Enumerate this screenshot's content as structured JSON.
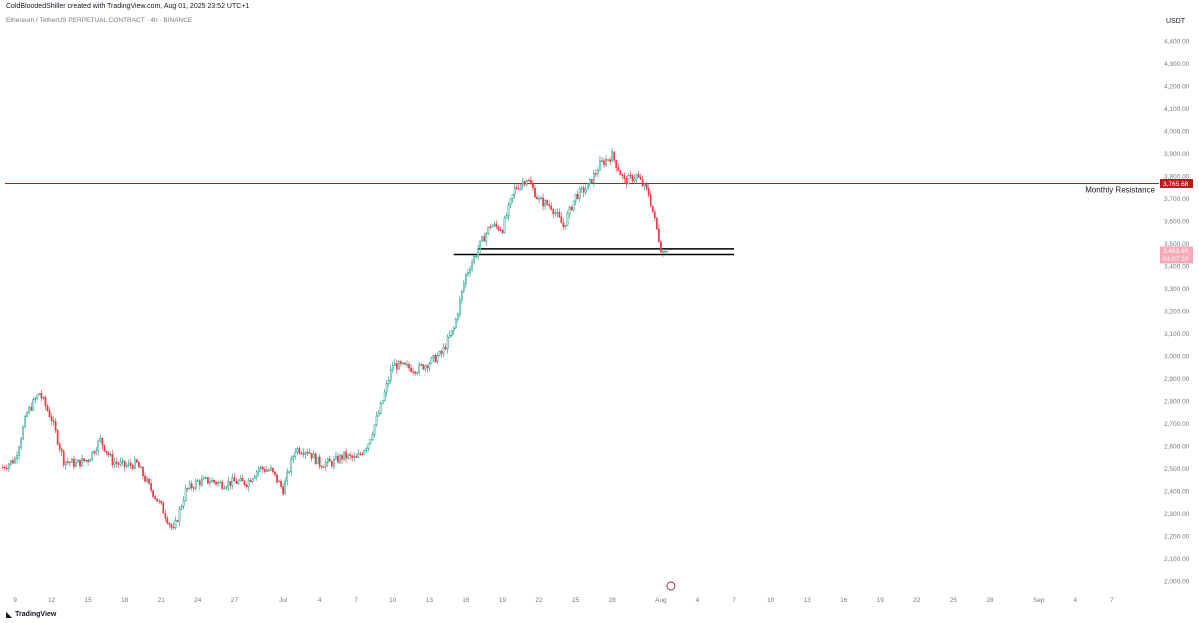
{
  "header": {
    "author_line": "ColdBloodedShiller created with TradingView.com, Aug 01, 2025 23:52 UTC+1",
    "symbol_line": "Ethereum / TetherUS PERPETUAL CONTRACT · 4h · BINANCE"
  },
  "footer": {
    "logo_text": "TradingView"
  },
  "colors": {
    "up": "#089981",
    "down": "#f23645",
    "candle_body": "#ffffff",
    "resistance": "#b71c1c",
    "support": "#000000",
    "last_price": "#f7a9b7"
  },
  "chart_data": {
    "type": "candlestick",
    "y_unit": "USDT",
    "ylim": [
      1950,
      4470
    ],
    "y_ticks": [
      2000,
      2100,
      2200,
      2300,
      2400,
      2500,
      2600,
      2700,
      2800,
      2900,
      3000,
      3100,
      3200,
      3300,
      3400,
      3500,
      3600,
      3700,
      3800,
      3900,
      4000,
      4100,
      4200,
      4300,
      4400
    ],
    "y_tick_labels": [
      "2,000.00",
      "2,100.00",
      "2,200.00",
      "2,300.00",
      "2,400.00",
      "2,500.00",
      "2,600.00",
      "2,700.00",
      "2,800.00",
      "2,900.00",
      "3,000.00",
      "3,100.00",
      "3,200.00",
      "3,300.00",
      "3,400.00",
      "3,500.00",
      "3,600.00",
      "3,700.00",
      "3,800.00",
      "3,900.00",
      "4,000.00",
      "4,100.00",
      "4,200.00",
      "4,300.00",
      "4,400.00"
    ],
    "x_axis": {
      "start": "2025-06-09",
      "end": "2025-09-08",
      "ticks": [
        {
          "date": "2025-06-09",
          "label": "9"
        },
        {
          "date": "2025-06-12",
          "label": "12"
        },
        {
          "date": "2025-06-15",
          "label": "15"
        },
        {
          "date": "2025-06-18",
          "label": "18"
        },
        {
          "date": "2025-06-21",
          "label": "21"
        },
        {
          "date": "2025-06-24",
          "label": "24"
        },
        {
          "date": "2025-06-27",
          "label": "27"
        },
        {
          "date": "2025-07-01",
          "label": "Jul"
        },
        {
          "date": "2025-07-04",
          "label": "4"
        },
        {
          "date": "2025-07-07",
          "label": "7"
        },
        {
          "date": "2025-07-10",
          "label": "10"
        },
        {
          "date": "2025-07-13",
          "label": "13"
        },
        {
          "date": "2025-07-16",
          "label": "16"
        },
        {
          "date": "2025-07-19",
          "label": "19"
        },
        {
          "date": "2025-07-22",
          "label": "22"
        },
        {
          "date": "2025-07-25",
          "label": "25"
        },
        {
          "date": "2025-07-28",
          "label": "28"
        },
        {
          "date": "2025-08-01",
          "label": "Aug"
        },
        {
          "date": "2025-08-04",
          "label": "4"
        },
        {
          "date": "2025-08-07",
          "label": "7"
        },
        {
          "date": "2025-08-10",
          "label": "10"
        },
        {
          "date": "2025-08-13",
          "label": "13"
        },
        {
          "date": "2025-08-16",
          "label": "16"
        },
        {
          "date": "2025-08-19",
          "label": "19"
        },
        {
          "date": "2025-08-22",
          "label": "22"
        },
        {
          "date": "2025-08-25",
          "label": "25"
        },
        {
          "date": "2025-08-28",
          "label": "28"
        },
        {
          "date": "2025-09-01",
          "label": "Sep"
        },
        {
          "date": "2025-09-04",
          "label": "4"
        },
        {
          "date": "2025-09-07",
          "label": "7"
        }
      ]
    },
    "price_path": [
      {
        "date": "2025-06-08",
        "price": 2505
      },
      {
        "date": "2025-06-09",
        "price": 2540
      },
      {
        "date": "2025-06-10",
        "price": 2745
      },
      {
        "date": "2025-06-11",
        "price": 2835
      },
      {
        "date": "2025-06-12",
        "price": 2720
      },
      {
        "date": "2025-06-13",
        "price": 2535
      },
      {
        "date": "2025-06-14",
        "price": 2520
      },
      {
        "date": "2025-06-15",
        "price": 2540
      },
      {
        "date": "2025-06-16",
        "price": 2625
      },
      {
        "date": "2025-06-17",
        "price": 2530
      },
      {
        "date": "2025-06-18",
        "price": 2510
      },
      {
        "date": "2025-06-19",
        "price": 2520
      },
      {
        "date": "2025-06-20",
        "price": 2420
      },
      {
        "date": "2025-06-21",
        "price": 2330
      },
      {
        "date": "2025-06-22",
        "price": 2220
      },
      {
        "date": "2025-06-23",
        "price": 2400
      },
      {
        "date": "2025-06-24",
        "price": 2440
      },
      {
        "date": "2025-06-25",
        "price": 2445
      },
      {
        "date": "2025-06-26",
        "price": 2430
      },
      {
        "date": "2025-06-27",
        "price": 2440
      },
      {
        "date": "2025-06-28",
        "price": 2435
      },
      {
        "date": "2025-06-29",
        "price": 2500
      },
      {
        "date": "2025-06-30",
        "price": 2490
      },
      {
        "date": "2025-07-01",
        "price": 2405
      },
      {
        "date": "2025-07-02",
        "price": 2585
      },
      {
        "date": "2025-07-03",
        "price": 2580
      },
      {
        "date": "2025-07-04",
        "price": 2520
      },
      {
        "date": "2025-07-05",
        "price": 2525
      },
      {
        "date": "2025-07-06",
        "price": 2555
      },
      {
        "date": "2025-07-07",
        "price": 2540
      },
      {
        "date": "2025-07-08",
        "price": 2615
      },
      {
        "date": "2025-07-09",
        "price": 2770
      },
      {
        "date": "2025-07-10",
        "price": 2960
      },
      {
        "date": "2025-07-11",
        "price": 2950
      },
      {
        "date": "2025-07-12",
        "price": 2940
      },
      {
        "date": "2025-07-13",
        "price": 2970
      },
      {
        "date": "2025-07-14",
        "price": 3010
      },
      {
        "date": "2025-07-15",
        "price": 3120
      },
      {
        "date": "2025-07-16",
        "price": 3360
      },
      {
        "date": "2025-07-17",
        "price": 3475
      },
      {
        "date": "2025-07-18",
        "price": 3580
      },
      {
        "date": "2025-07-19",
        "price": 3565
      },
      {
        "date": "2025-07-20",
        "price": 3740
      },
      {
        "date": "2025-07-21",
        "price": 3790
      },
      {
        "date": "2025-07-22",
        "price": 3690
      },
      {
        "date": "2025-07-23",
        "price": 3665
      },
      {
        "date": "2025-07-24",
        "price": 3575
      },
      {
        "date": "2025-07-25",
        "price": 3710
      },
      {
        "date": "2025-07-26",
        "price": 3750
      },
      {
        "date": "2025-07-27",
        "price": 3850
      },
      {
        "date": "2025-07-28",
        "price": 3890
      },
      {
        "date": "2025-07-29",
        "price": 3775
      },
      {
        "date": "2025-07-30",
        "price": 3800
      },
      {
        "date": "2025-07-31",
        "price": 3720
      },
      {
        "date": "2025-08-01",
        "price": 3480
      }
    ],
    "horizontal_levels": [
      {
        "name": "Monthly Resistance",
        "price": 3765.68,
        "label": "3,765.68",
        "color": "#b71c1c"
      },
      {
        "name": "support-upper",
        "price": 3475,
        "from": "2025-07-17",
        "to": "2025-08-07",
        "color": "#000000"
      },
      {
        "name": "support-lower",
        "price": 3450,
        "from": "2025-07-15",
        "to": "2025-08-07",
        "color": "#000000"
      }
    ],
    "annotations": [
      {
        "text": "Monthly Resistance",
        "price": 3765.68
      }
    ],
    "last_price": {
      "value": 3463.6,
      "label": "3,463.60",
      "countdown": "01:07:10"
    }
  }
}
